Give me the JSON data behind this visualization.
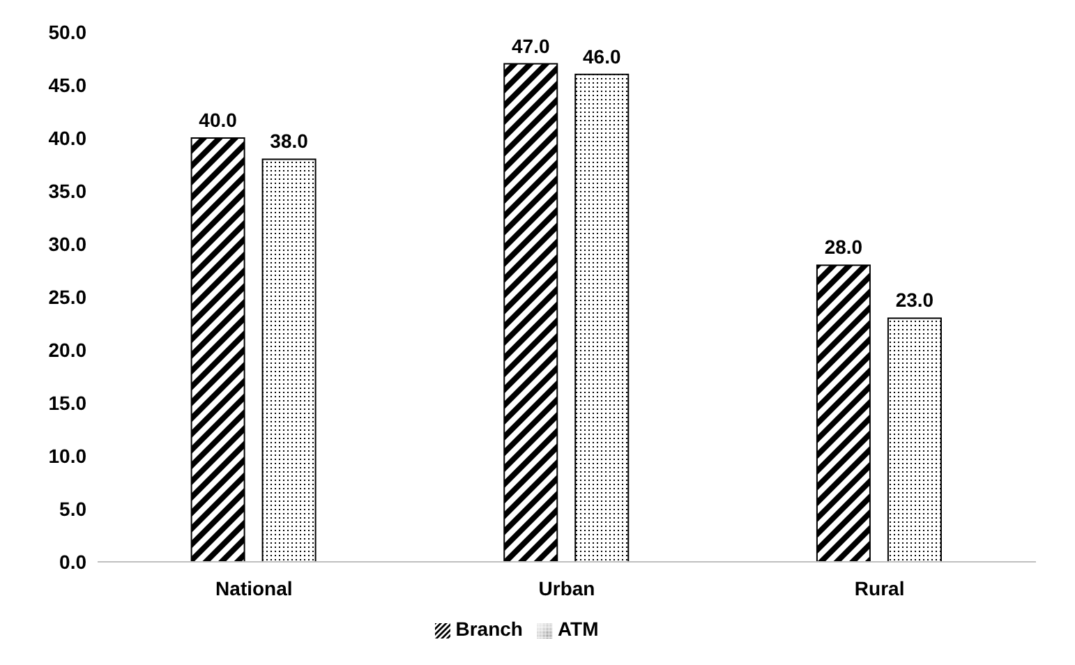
{
  "chart_data": {
    "type": "bar",
    "categories": [
      "National",
      "Urban",
      "Rural"
    ],
    "series": [
      {
        "name": "Branch",
        "color": "#000000",
        "values": [
          40,
          47,
          28
        ],
        "value_labels": [
          "40.0",
          "47.0",
          "28.0"
        ]
      },
      {
        "name": "ATM",
        "color": "#000000",
        "values": [
          38,
          46,
          23
        ],
        "value_labels": [
          "38.0",
          "46.0",
          "23.0"
        ]
      }
    ],
    "ylim": [
      0,
      50
    ],
    "yticks": [
      {
        "value": 0,
        "label": "0.0"
      },
      {
        "value": 5,
        "label": "5.0"
      },
      {
        "value": 10,
        "label": "10.0"
      },
      {
        "value": 15,
        "label": "15.0"
      },
      {
        "value": 20,
        "label": "20.0"
      },
      {
        "value": 25,
        "label": "25.0"
      },
      {
        "value": 30,
        "label": "30.0"
      },
      {
        "value": 35,
        "label": "35.0"
      },
      {
        "value": 40,
        "label": "40.0"
      },
      {
        "value": 45,
        "label": "45.0"
      },
      {
        "value": 50,
        "label": "50.0"
      }
    ],
    "grid": false,
    "legend": "bottom"
  }
}
